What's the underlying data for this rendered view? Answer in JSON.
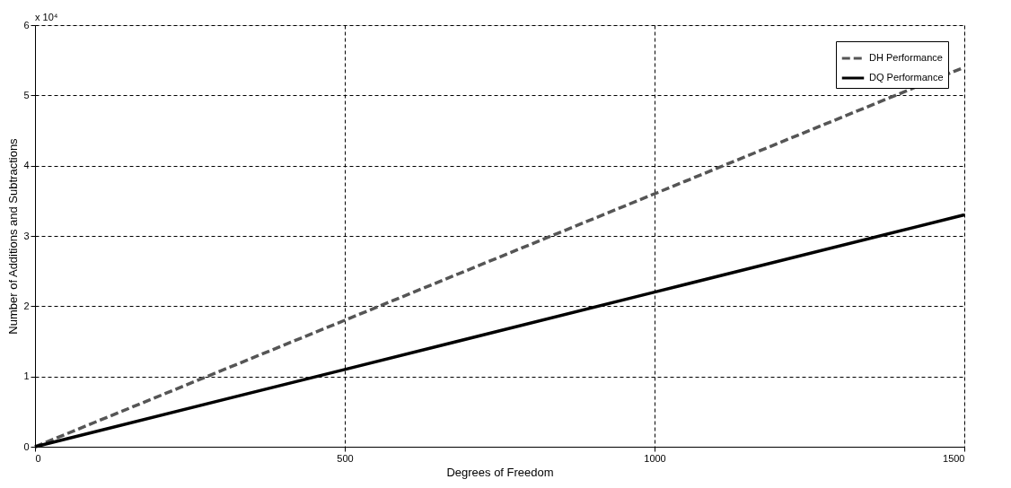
{
  "chart_data": {
    "type": "line",
    "xlabel": "Degrees of Freedom",
    "ylabel": "Number of Additions and Subtractions",
    "annotations": [
      "x 10⁴"
    ],
    "x": [
      0,
      500,
      1000,
      1500
    ],
    "series": [
      {
        "name": "DH Performance",
        "color": "#555555",
        "line_style": "dashed",
        "values": [
          0,
          1.8,
          3.6,
          5.4
        ]
      },
      {
        "name": "DQ Performance",
        "color": "#000000",
        "line_style": "solid",
        "values": [
          0,
          1.1,
          2.2,
          3.3
        ]
      }
    ],
    "xlim": [
      0,
      1500
    ],
    "xticks": [
      0,
      500,
      1000,
      1500
    ],
    "ylim": [
      0,
      6
    ],
    "yticks": [
      0,
      1,
      2,
      3,
      4,
      5,
      6
    ],
    "grid": true,
    "legend": "top right",
    "marker": "none"
  }
}
